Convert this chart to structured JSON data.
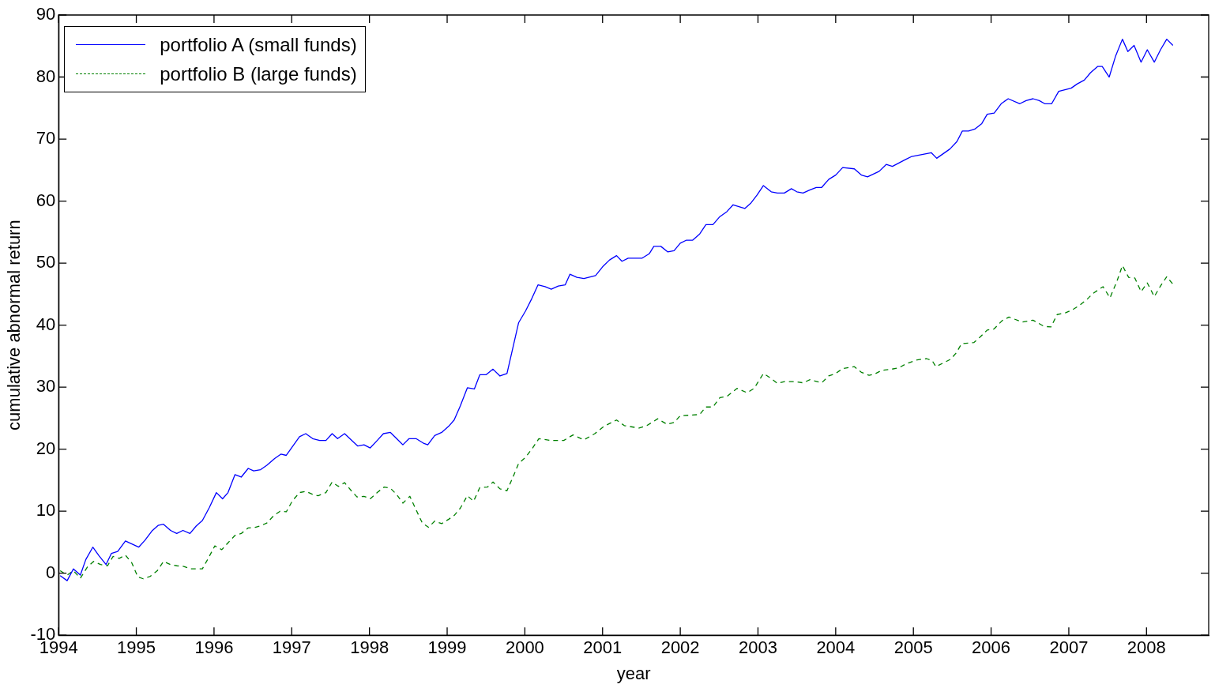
{
  "chart_data": {
    "type": "line",
    "xlabel": "year",
    "ylabel": "cumulative abnormal return",
    "xlim": [
      1994,
      2008.8
    ],
    "ylim": [
      -10,
      90
    ],
    "xticks": [
      1994,
      1995,
      1996,
      1997,
      1998,
      1999,
      2000,
      2001,
      2002,
      2003,
      2004,
      2005,
      2006,
      2007,
      2008
    ],
    "yticks": [
      -10,
      0,
      10,
      20,
      30,
      40,
      50,
      60,
      70,
      80,
      90
    ],
    "grid": false,
    "legend": "top left",
    "series": [
      {
        "name": "portfolio A (small funds)",
        "color": "#0000ff",
        "line_style": "solid",
        "x": [
          1994.02,
          1994.11,
          1994.19,
          1994.28,
          1994.35,
          1994.44,
          1994.52,
          1994.61,
          1994.68,
          1994.76,
          1994.86,
          1995.03,
          1995.11,
          1995.2,
          1995.28,
          1995.35,
          1995.44,
          1995.52,
          1995.6,
          1995.69,
          1995.77,
          1995.85,
          1995.94,
          1996.03,
          1996.11,
          1996.18,
          1996.27,
          1996.35,
          1996.44,
          1996.51,
          1996.6,
          1996.68,
          1996.78,
          1996.86,
          1996.93,
          1997.1,
          1997.18,
          1997.27,
          1997.36,
          1997.44,
          1997.52,
          1997.59,
          1997.68,
          1997.85,
          1997.93,
          1998.01,
          1998.1,
          1998.18,
          1998.27,
          1998.35,
          1998.43,
          1998.51,
          1998.6,
          1998.69,
          1998.75,
          1998.84,
          1998.93,
          1999.02,
          1999.09,
          1999.17,
          1999.26,
          1999.35,
          1999.42,
          1999.5,
          1999.59,
          1999.68,
          1999.77,
          1999.92,
          2000.01,
          2000.09,
          2000.17,
          2000.26,
          2000.34,
          2000.43,
          2000.52,
          2000.58,
          2000.67,
          2000.76,
          2000.91,
          2001.0,
          2001.09,
          2001.18,
          2001.25,
          2001.33,
          2001.51,
          2001.6,
          2001.66,
          2001.75,
          2001.84,
          2001.92,
          2002.0,
          2002.08,
          2002.16,
          2002.25,
          2002.33,
          2002.42,
          2002.51,
          2002.6,
          2002.68,
          2002.83,
          2002.91,
          2002.99,
          2003.07,
          2003.17,
          2003.25,
          2003.34,
          2003.43,
          2003.5,
          2003.58,
          2003.67,
          2003.75,
          2003.82,
          2003.91,
          2004.0,
          2004.09,
          2004.24,
          2004.33,
          2004.41,
          2004.56,
          2004.65,
          2004.73,
          2004.9,
          2004.98,
          2005.23,
          2005.3,
          2005.47,
          2005.56,
          2005.63,
          2005.71,
          2005.79,
          2005.88,
          2005.95,
          2006.04,
          2006.13,
          2006.22,
          2006.37,
          2006.45,
          2006.54,
          2006.62,
          2006.69,
          2006.78,
          2006.87,
          2007.03,
          2007.11,
          2007.2,
          2007.28,
          2007.37,
          2007.43,
          2007.52,
          2007.6,
          2007.69,
          2007.76,
          2007.84,
          2007.93,
          2008.01,
          2008.1,
          2008.18,
          2008.26,
          2008.34
        ],
        "values": [
          -0.4,
          -1.2,
          0.7,
          -0.3,
          2.2,
          4.2,
          2.8,
          1.4,
          3.2,
          3.5,
          5.2,
          4.2,
          5.3,
          6.8,
          7.7,
          7.9,
          6.9,
          6.4,
          6.9,
          6.4,
          7.6,
          8.5,
          10.6,
          13,
          12,
          13,
          15.9,
          15.5,
          16.9,
          16.5,
          16.7,
          17.4,
          18.5,
          19.2,
          19,
          22,
          22.5,
          21.7,
          21.4,
          21.4,
          22.5,
          21.7,
          22.5,
          20.5,
          20.7,
          20.2,
          21.4,
          22.5,
          22.7,
          21.7,
          20.7,
          21.7,
          21.7,
          21,
          20.7,
          22.2,
          22.7,
          23.7,
          24.7,
          27,
          29.9,
          29.7,
          32,
          32,
          32.9,
          31.8,
          32.2,
          40.4,
          42.3,
          44.3,
          46.5,
          46.2,
          45.8,
          46.3,
          46.5,
          48.2,
          47.7,
          47.5,
          48,
          49.4,
          50.5,
          51.2,
          50.3,
          50.8,
          50.8,
          51.5,
          52.7,
          52.7,
          51.8,
          52,
          53.2,
          53.7,
          53.7,
          54.7,
          56.2,
          56.2,
          57.5,
          58.3,
          59.4,
          58.8,
          59.7,
          61,
          62.5,
          61.5,
          61.3,
          61.3,
          62,
          61.5,
          61.3,
          61.8,
          62.2,
          62.2,
          63.5,
          64.2,
          65.4,
          65.2,
          64.2,
          63.9,
          64.8,
          65.9,
          65.6,
          66.7,
          67.2,
          67.8,
          66.9,
          68.4,
          69.6,
          71.3,
          71.3,
          71.6,
          72.5,
          74,
          74.2,
          75.7,
          76.5,
          75.7,
          76.2,
          76.5,
          76.2,
          75.7,
          75.7,
          77.7,
          78.2,
          78.9,
          79.5,
          80.7,
          81.7,
          81.7,
          80,
          83.3,
          86.1,
          84.1,
          85.1,
          82.4,
          84.4,
          82.4,
          84.4,
          86.1,
          85.1
        ]
      },
      {
        "name": "portfolio B (large funds)",
        "color": "#008000",
        "line_style": "dashed",
        "x": [
          1994.02,
          1994.11,
          1994.19,
          1994.28,
          1994.37,
          1994.45,
          1994.54,
          1994.63,
          1994.7,
          1994.78,
          1994.86,
          1994.94,
          1995.02,
          1995.09,
          1995.18,
          1995.27,
          1995.35,
          1995.44,
          1995.52,
          1995.61,
          1995.7,
          1995.85,
          1995.93,
          1996.01,
          1996.1,
          1996.18,
          1996.27,
          1996.35,
          1996.44,
          1996.53,
          1996.61,
          1996.68,
          1996.77,
          1996.85,
          1996.93,
          1997.01,
          1997.1,
          1997.18,
          1997.27,
          1997.34,
          1997.44,
          1997.52,
          1997.6,
          1997.68,
          1997.76,
          1997.84,
          1997.93,
          1998.01,
          1998.1,
          1998.19,
          1998.27,
          1998.35,
          1998.43,
          1998.52,
          1998.59,
          1998.68,
          1998.76,
          1998.84,
          1998.93,
          1999.02,
          1999.09,
          1999.17,
          1999.26,
          1999.34,
          1999.42,
          1999.52,
          1999.59,
          1999.68,
          1999.77,
          1999.84,
          1999.92,
          2000.01,
          2000.1,
          2000.18,
          2000.34,
          2000.5,
          2000.62,
          2000.76,
          2000.9,
          2001.02,
          2001.18,
          2001.28,
          2001.47,
          2001.57,
          2001.71,
          2001.83,
          2001.92,
          2002.0,
          2002.16,
          2002.25,
          2002.33,
          2002.42,
          2002.51,
          2002.6,
          2002.73,
          2002.86,
          2002.95,
          2003.07,
          2003.17,
          2003.25,
          2003.34,
          2003.46,
          2003.58,
          2003.67,
          2003.82,
          2003.91,
          2004.0,
          2004.09,
          2004.24,
          2004.33,
          2004.43,
          2004.5,
          2004.59,
          2004.72,
          2004.81,
          2004.91,
          2005.05,
          2005.17,
          2005.24,
          2005.29,
          2005.48,
          2005.55,
          2005.62,
          2005.78,
          2005.86,
          2005.95,
          2006.04,
          2006.14,
          2006.23,
          2006.4,
          2006.54,
          2006.68,
          2006.77,
          2006.85,
          2006.96,
          2007.05,
          2007.14,
          2007.23,
          2007.31,
          2007.44,
          2007.53,
          2007.62,
          2007.69,
          2007.77,
          2007.85,
          2007.93,
          2008.01,
          2008.1,
          2008.18,
          2008.26,
          2008.34
        ],
        "values": [
          0.4,
          -0.3,
          0.4,
          -0.8,
          1,
          1.9,
          1.4,
          1.2,
          2.7,
          2.4,
          2.9,
          1.7,
          -0.6,
          -0.9,
          -0.5,
          0.4,
          1.9,
          1.4,
          1.2,
          1.1,
          0.7,
          0.7,
          2.5,
          4.4,
          3.8,
          4.9,
          6.1,
          6.4,
          7.3,
          7.4,
          7.7,
          8.1,
          9.3,
          10,
          9.9,
          11.7,
          13,
          13.2,
          12.7,
          12.5,
          13,
          14.7,
          14,
          14.6,
          13.4,
          12.3,
          12.4,
          12,
          13,
          13.9,
          13.7,
          12.7,
          11.3,
          12.4,
          10.5,
          8.1,
          7.4,
          8.4,
          8,
          8.7,
          9.3,
          10.5,
          12.5,
          11.6,
          13.8,
          13.9,
          14.7,
          13.6,
          13.3,
          15.3,
          17.7,
          18.7,
          20.2,
          21.7,
          21.4,
          21.4,
          22.3,
          21.5,
          22.5,
          23.7,
          24.7,
          23.8,
          23.4,
          23.8,
          24.9,
          24,
          24.3,
          25.4,
          25.5,
          25.6,
          26.8,
          26.8,
          28.3,
          28.5,
          29.8,
          29.1,
          29.8,
          32.2,
          31.4,
          30.6,
          30.9,
          30.9,
          30.7,
          31.2,
          30.7,
          31.8,
          32.2,
          33,
          33.3,
          32.4,
          31.9,
          32.1,
          32.7,
          32.9,
          33.1,
          33.8,
          34.4,
          34.6,
          34.3,
          33.3,
          34.5,
          35.5,
          37,
          37.2,
          38.1,
          39.2,
          39.4,
          40.7,
          41.3,
          40.5,
          40.8,
          39.8,
          39.7,
          41.7,
          42,
          42.5,
          43.2,
          44.1,
          45.1,
          46.2,
          44.4,
          47.1,
          49.6,
          47.7,
          47.6,
          45.4,
          46.8,
          44.6,
          46.3,
          47.8,
          46.6
        ]
      }
    ]
  }
}
